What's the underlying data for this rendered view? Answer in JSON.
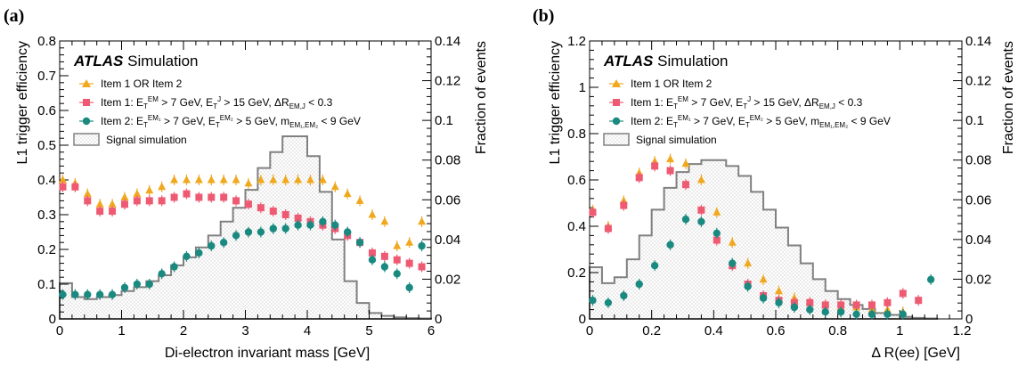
{
  "colors": {
    "or": "#f0a81e",
    "item1": "#ee5a72",
    "item2": "#1a8a80",
    "signal": "#808080"
  },
  "chart_data": [
    {
      "type": "scatter",
      "panel_label": "(a)",
      "atlas_label": "ATLAS",
      "atlas_sub": "Simulation",
      "xlabel": "Di-electron invariant mass [GeV]",
      "ylabel_left": "L1 trigger efficiency",
      "ylabel_right": "Fraction of events",
      "xlim": [
        0,
        6
      ],
      "ylim_left": [
        0,
        0.8
      ],
      "ylim_right": [
        0,
        0.14
      ],
      "xticks": [
        "0",
        "1",
        "2",
        "3",
        "4",
        "5",
        "6"
      ],
      "yticks_left": [
        "0",
        "0.1",
        "0.2",
        "0.3",
        "0.4",
        "0.5",
        "0.6",
        "0.7",
        "0.8"
      ],
      "yticks_right": [
        "0",
        "0.02",
        "0.04",
        "0.06",
        "0.08",
        "0.1",
        "0.12",
        "0.14"
      ],
      "legend": {
        "or": "Item 1 OR Item 2",
        "item1": "Item 1: E_T^EM > 7 GeV, E_T^J > 15 GeV, ΔR_EM,J < 0.3",
        "item2": "Item 2: E_T^EM1 > 7 GeV, E_T^EM2 > 5 GeV, m_EM1,EM2 < 9 GeV",
        "signal": "Signal simulation"
      },
      "series": [
        {
          "name": "Item 1 OR Item 2",
          "marker": "triangle",
          "x": [
            0.05,
            0.25,
            0.45,
            0.65,
            0.85,
            1.05,
            1.25,
            1.45,
            1.65,
            1.85,
            2.05,
            2.25,
            2.45,
            2.65,
            2.85,
            3.05,
            3.25,
            3.45,
            3.65,
            3.85,
            4.05,
            4.25,
            4.45,
            4.65,
            4.85,
            5.05,
            5.25,
            5.45,
            5.65,
            5.85
          ],
          "y": [
            0.4,
            0.39,
            0.36,
            0.33,
            0.33,
            0.35,
            0.36,
            0.37,
            0.38,
            0.4,
            0.4,
            0.4,
            0.4,
            0.4,
            0.4,
            0.39,
            0.4,
            0.4,
            0.4,
            0.4,
            0.4,
            0.4,
            0.38,
            0.36,
            0.34,
            0.3,
            0.28,
            0.21,
            0.22,
            0.28
          ]
        },
        {
          "name": "Item 1",
          "marker": "square",
          "x": [
            0.05,
            0.25,
            0.45,
            0.65,
            0.85,
            1.05,
            1.25,
            1.45,
            1.65,
            1.85,
            2.05,
            2.25,
            2.45,
            2.65,
            2.85,
            3.05,
            3.25,
            3.45,
            3.65,
            3.85,
            4.05,
            4.25,
            4.45,
            4.65,
            4.85,
            5.05,
            5.25,
            5.45,
            5.65,
            5.85
          ],
          "y": [
            0.38,
            0.38,
            0.34,
            0.31,
            0.31,
            0.33,
            0.34,
            0.34,
            0.34,
            0.35,
            0.36,
            0.35,
            0.35,
            0.35,
            0.34,
            0.33,
            0.32,
            0.31,
            0.3,
            0.29,
            0.28,
            0.27,
            0.26,
            0.24,
            0.22,
            0.19,
            0.18,
            0.17,
            0.16,
            0.15
          ]
        },
        {
          "name": "Item 2",
          "marker": "circle",
          "x": [
            0.05,
            0.25,
            0.45,
            0.65,
            0.85,
            1.05,
            1.25,
            1.45,
            1.65,
            1.85,
            2.05,
            2.25,
            2.45,
            2.65,
            2.85,
            3.05,
            3.25,
            3.45,
            3.65,
            3.85,
            4.05,
            4.25,
            4.45,
            4.65,
            4.85,
            5.05,
            5.25,
            5.45,
            5.65,
            5.85
          ],
          "y": [
            0.07,
            0.07,
            0.07,
            0.07,
            0.07,
            0.09,
            0.1,
            0.1,
            0.13,
            0.15,
            0.18,
            0.19,
            0.21,
            0.22,
            0.24,
            0.25,
            0.25,
            0.26,
            0.26,
            0.27,
            0.27,
            0.28,
            0.27,
            0.25,
            0.22,
            0.17,
            0.15,
            0.13,
            0.09,
            0.21
          ]
        }
      ],
      "histogram": {
        "name": "Signal simulation",
        "edges": [
          0,
          0.2,
          0.4,
          0.6,
          0.8,
          1.0,
          1.2,
          1.4,
          1.6,
          1.8,
          2.0,
          2.2,
          2.4,
          2.6,
          2.8,
          3.0,
          3.2,
          3.4,
          3.6,
          3.8,
          4.0,
          4.2,
          4.4,
          4.6,
          4.8,
          5.0,
          5.2,
          5.4,
          5.6,
          5.8,
          6.0
        ],
        "values": [
          0.018,
          0.011,
          0.01,
          0.011,
          0.012,
          0.014,
          0.016,
          0.019,
          0.022,
          0.027,
          0.031,
          0.036,
          0.042,
          0.049,
          0.056,
          0.065,
          0.076,
          0.084,
          0.092,
          0.092,
          0.082,
          0.064,
          0.04,
          0.019,
          0.008,
          0.003,
          0.0015,
          0.0008,
          0.0004,
          0.0002
        ]
      }
    },
    {
      "type": "scatter",
      "panel_label": "(b)",
      "atlas_label": "ATLAS",
      "atlas_sub": "Simulation",
      "xlabel": "Δ R(ee) [GeV]",
      "ylabel_left": "L1 trigger efficiency",
      "ylabel_right": "Fraction of events",
      "xlim": [
        0,
        1.2
      ],
      "ylim_left": [
        0,
        1.2
      ],
      "ylim_right": [
        0,
        0.14
      ],
      "xticks": [
        "0",
        "0.2",
        "0.4",
        "0.6",
        "0.8",
        "1",
        "1.2"
      ],
      "yticks_left": [
        "0",
        "0.2",
        "0.4",
        "0.6",
        "0.8",
        "1",
        "1.2"
      ],
      "yticks_right": [
        "0",
        "0.02",
        "0.04",
        "0.06",
        "0.08",
        "0.1",
        "0.12",
        "0.14"
      ],
      "legend": {
        "or": "Item 1 OR Item 2",
        "item1": "Item 1: E_T^EM > 7 GeV, E_T^J > 15 GeV, ΔR_EM,J < 0.3",
        "item2": "Item 2: E_T^EM1 > 7 GeV, E_T^EM2 > 5 GeV, m_EM1,EM2 < 9 GeV",
        "signal": "Signal simulation"
      },
      "series": [
        {
          "name": "Item 1 OR Item 2",
          "marker": "triangle",
          "x": [
            0.01,
            0.06,
            0.11,
            0.16,
            0.21,
            0.26,
            0.31,
            0.36,
            0.41,
            0.46,
            0.51,
            0.56,
            0.61,
            0.66,
            0.71,
            0.76,
            0.81,
            0.86,
            0.91,
            0.96,
            1.01
          ],
          "y": [
            0.47,
            0.4,
            0.51,
            0.63,
            0.68,
            0.69,
            0.67,
            0.6,
            0.46,
            0.33,
            0.24,
            0.17,
            0.12,
            0.09,
            0.07,
            0.06,
            0.05,
            0.05,
            0.04,
            0.04,
            0.03
          ]
        },
        {
          "name": "Item 1",
          "marker": "square",
          "x": [
            0.01,
            0.06,
            0.11,
            0.16,
            0.21,
            0.26,
            0.31,
            0.36,
            0.41,
            0.46,
            0.51,
            0.56,
            0.61,
            0.66,
            0.71,
            0.76,
            0.81,
            0.86,
            0.91,
            0.96,
            1.01,
            1.06
          ],
          "y": [
            0.46,
            0.39,
            0.49,
            0.61,
            0.66,
            0.64,
            0.58,
            0.47,
            0.34,
            0.23,
            0.15,
            0.1,
            0.08,
            0.07,
            0.07,
            0.06,
            0.06,
            0.06,
            0.06,
            0.07,
            0.11,
            0.08
          ]
        },
        {
          "name": "Item 2",
          "marker": "circle",
          "x": [
            0.01,
            0.06,
            0.11,
            0.16,
            0.21,
            0.26,
            0.31,
            0.36,
            0.41,
            0.46,
            0.51,
            0.56,
            0.61,
            0.66,
            0.71,
            0.76,
            0.81,
            0.86,
            0.91,
            0.96,
            1.01,
            1.1
          ],
          "y": [
            0.08,
            0.07,
            0.1,
            0.15,
            0.23,
            0.32,
            0.43,
            0.42,
            0.37,
            0.24,
            0.14,
            0.09,
            0.07,
            0.05,
            0.04,
            0.03,
            0.03,
            0.02,
            0.02,
            0.02,
            0.02,
            0.17
          ]
        }
      ],
      "histogram": {
        "name": "Signal simulation",
        "edges": [
          0,
          0.04,
          0.08,
          0.12,
          0.16,
          0.2,
          0.24,
          0.28,
          0.32,
          0.36,
          0.4,
          0.44,
          0.48,
          0.52,
          0.56,
          0.6,
          0.64,
          0.68,
          0.72,
          0.76,
          0.8,
          0.84,
          0.88,
          0.92,
          0.96,
          1.0,
          1.04,
          1.08,
          1.12
        ],
        "values": [
          0.026,
          0.018,
          0.021,
          0.03,
          0.042,
          0.055,
          0.066,
          0.074,
          0.078,
          0.08,
          0.08,
          0.077,
          0.072,
          0.064,
          0.055,
          0.046,
          0.037,
          0.028,
          0.02,
          0.014,
          0.01,
          0.007,
          0.005,
          0.003,
          0.002,
          0.001,
          0.0005,
          0.0002
        ]
      }
    }
  ]
}
